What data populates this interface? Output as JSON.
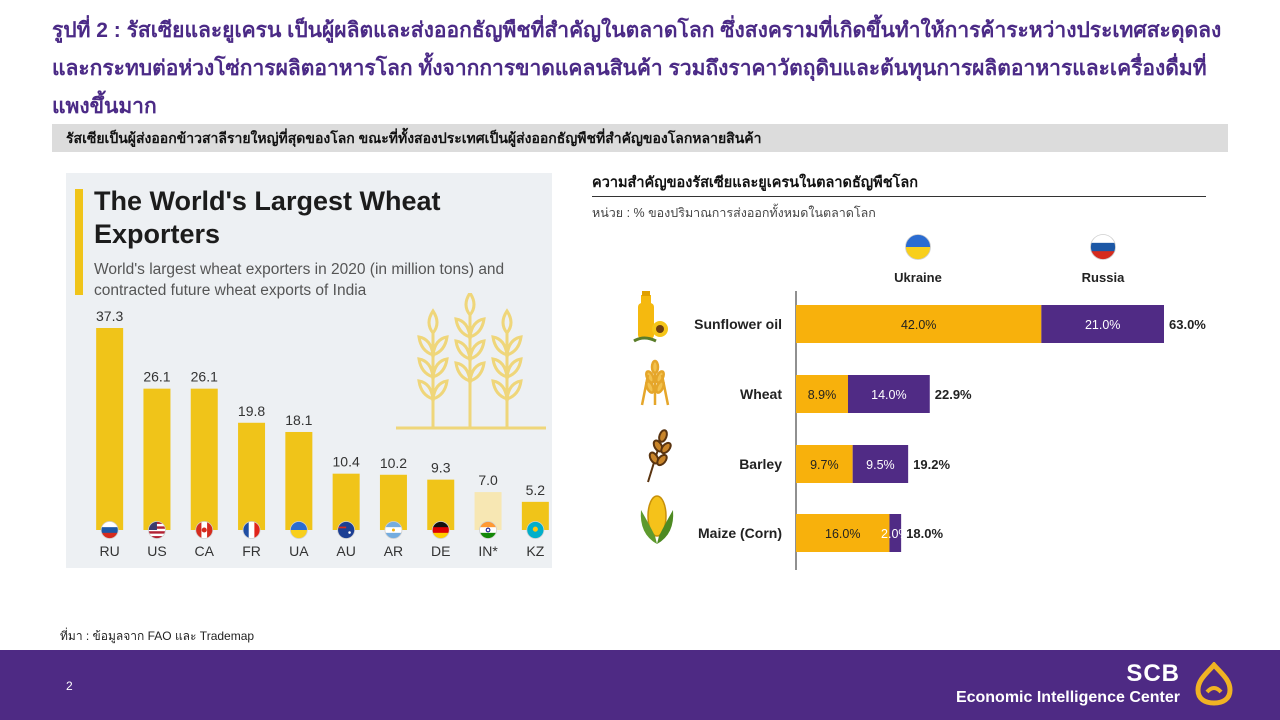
{
  "slide": {
    "title": "รูปที่ 2 : รัสเซียและยูเครน เป็นผู้ผลิตและส่งออกธัญพืชที่สำคัญในตลาดโลก ซึ่งสงครามที่เกิดขึ้นทำให้การค้าระหว่างประเทศสะดุดลงและกระทบต่อห่วงโซ่การผลิตอาหารโลก ทั้งจากการขาดแคลนสินค้า รวมถึงราคาวัตถุดิบและต้นทุนการผลิตอาหารและเครื่องดื่มที่แพงขึ้นมาก",
    "subtitle": "รัสเซียเป็นผู้ส่งออกข้าวสาลีรายใหญ่ที่สุดของโลก ขณะที่ทั้งสองประเทศเป็นผู้ส่งออกธัญพืชที่สำคัญของโลกหลายสินค้า",
    "source": "ที่มา : ข้อมูลจาก FAO และ Trademap",
    "page_number": "2"
  },
  "footer": {
    "brand_name": "SCB",
    "brand_sub": "Economic Intelligence Center"
  },
  "colors": {
    "ukraine": "#f8b10c",
    "russia": "#502b85",
    "wheat_bar": "#f0c419",
    "title_purple": "#4b2a86"
  },
  "chart_data": [
    {
      "type": "bar",
      "title": "The World's Largest Wheat Exporters",
      "subtitle": "World's largest wheat exporters in 2020 (in million tons) and contracted future wheat exports of India",
      "categories": [
        "RU",
        "US",
        "CA",
        "FR",
        "UA",
        "AU",
        "AR",
        "DE",
        "IN*",
        "KZ"
      ],
      "values": [
        37.3,
        26.1,
        26.1,
        19.8,
        18.1,
        10.4,
        10.2,
        9.3,
        7.0,
        5.2
      ],
      "value_labels": [
        "37.3",
        "26.1",
        "26.1",
        "19.8",
        "18.1",
        "10.4",
        "10.2",
        "9.3",
        "7.0",
        "5.2"
      ],
      "highlight_faded": [
        "IN*"
      ],
      "flags": [
        "flag-russia",
        "flag-usa",
        "flag-canada",
        "flag-france",
        "flag-ukraine",
        "flag-australia",
        "flag-argentina",
        "flag-germany",
        "flag-india",
        "flag-kazakhstan"
      ],
      "ylim": [
        0,
        37.3
      ]
    },
    {
      "type": "bar",
      "orientation": "horizontal",
      "stacked": true,
      "title": "ความสำคัญของรัสเซียและยูเครนในตลาดธัญพืชโลก",
      "unit": "หน่วย : % ของปริมาณการส่งออกทั้งหมดในตลาดโลก",
      "categories": [
        "Sunflower oil",
        "Wheat",
        "Barley",
        "Maize (Corn)"
      ],
      "category_icons": [
        "sunflower-oil-icon",
        "wheat-icon",
        "barley-icon",
        "corn-icon"
      ],
      "series": [
        {
          "name": "Ukraine",
          "values": [
            42.0,
            8.9,
            9.7,
            16.0
          ],
          "labels": [
            "42.0%",
            "8.9%",
            "9.7%",
            "16.0%"
          ]
        },
        {
          "name": "Russia",
          "values": [
            21.0,
            14.0,
            9.5,
            2.0
          ],
          "labels": [
            "21.0%",
            "14.0%",
            "9.5%",
            "2.0%"
          ]
        }
      ],
      "totals": [
        63.0,
        22.9,
        19.2,
        18.0
      ],
      "total_labels": [
        "63.0%",
        "22.9%",
        "19.2%",
        "18.0%"
      ],
      "legend_icons": [
        "flag-ukraine",
        "flag-russia"
      ],
      "xlim": [
        0,
        63.0
      ],
      "grid": false
    }
  ]
}
